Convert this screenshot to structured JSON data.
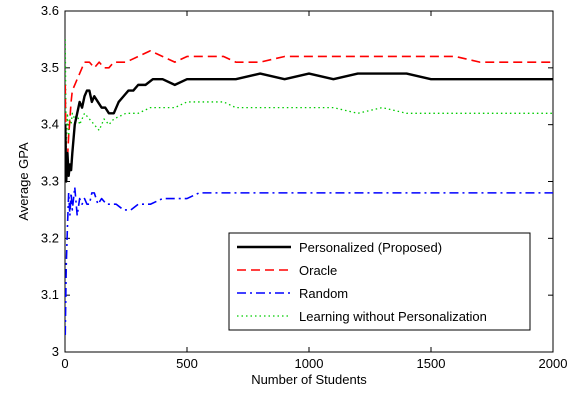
{
  "chart_data": {
    "type": "line",
    "title": "",
    "xlabel": "Number of Students",
    "ylabel": "Average GPA",
    "xlim": [
      0,
      2000
    ],
    "ylim": [
      3.0,
      3.6
    ],
    "xticks": [
      0,
      500,
      1000,
      1500,
      2000
    ],
    "yticks": [
      3.0,
      3.1,
      3.2,
      3.3,
      3.4,
      3.5,
      3.6
    ],
    "xtick_labels": [
      "0",
      "500",
      "1000",
      "1500",
      "2000"
    ],
    "ytick_labels": [
      "3",
      "3.1",
      "3.2",
      "3.3",
      "3.4",
      "3.5",
      "3.6"
    ],
    "grid": false,
    "legend_position": "bottom-right",
    "series": [
      {
        "name": "Personalized (Proposed)",
        "color": "#000000",
        "dash": "solid",
        "x": [
          1,
          5,
          10,
          15,
          20,
          25,
          30,
          40,
          50,
          60,
          70,
          80,
          90,
          100,
          110,
          120,
          135,
          150,
          165,
          180,
          200,
          220,
          240,
          260,
          280,
          300,
          330,
          360,
          400,
          450,
          500,
          550,
          600,
          650,
          700,
          800,
          900,
          1000,
          1100,
          1200,
          1300,
          1400,
          1500,
          1600,
          1700,
          1800,
          1900,
          2000
        ],
        "y": [
          3.4,
          3.3,
          3.35,
          3.31,
          3.33,
          3.32,
          3.35,
          3.4,
          3.42,
          3.44,
          3.43,
          3.45,
          3.46,
          3.46,
          3.44,
          3.45,
          3.44,
          3.43,
          3.43,
          3.42,
          3.42,
          3.44,
          3.45,
          3.46,
          3.46,
          3.47,
          3.47,
          3.48,
          3.48,
          3.47,
          3.48,
          3.48,
          3.48,
          3.48,
          3.48,
          3.49,
          3.48,
          3.49,
          3.48,
          3.49,
          3.49,
          3.49,
          3.48,
          3.48,
          3.48,
          3.48,
          3.48,
          3.48
        ]
      },
      {
        "name": "Oracle",
        "color": "#ff0000",
        "dash": "dashed",
        "x": [
          1,
          5,
          10,
          15,
          20,
          25,
          30,
          40,
          50,
          60,
          70,
          80,
          90,
          100,
          120,
          140,
          160,
          180,
          200,
          250,
          300,
          350,
          400,
          450,
          500,
          550,
          600,
          650,
          700,
          800,
          900,
          1000,
          1100,
          1200,
          1300,
          1400,
          1500,
          1600,
          1700,
          1800,
          1900,
          2000
        ],
        "y": [
          3.47,
          3.32,
          3.34,
          3.38,
          3.41,
          3.44,
          3.46,
          3.47,
          3.48,
          3.49,
          3.5,
          3.51,
          3.51,
          3.51,
          3.5,
          3.51,
          3.5,
          3.5,
          3.51,
          3.51,
          3.52,
          3.53,
          3.52,
          3.51,
          3.52,
          3.52,
          3.52,
          3.52,
          3.51,
          3.51,
          3.52,
          3.52,
          3.52,
          3.52,
          3.52,
          3.52,
          3.52,
          3.52,
          3.51,
          3.51,
          3.51,
          3.51
        ]
      },
      {
        "name": "Random",
        "color": "#0000ff",
        "dash": "dashdot",
        "x": [
          1,
          5,
          10,
          15,
          20,
          25,
          30,
          40,
          50,
          60,
          70,
          80,
          90,
          100,
          110,
          120,
          135,
          150,
          170,
          190,
          210,
          240,
          270,
          300,
          350,
          400,
          450,
          500,
          550,
          600,
          650,
          700,
          800,
          900,
          1000,
          1100,
          1200,
          1300,
          1400,
          1500,
          1600,
          1700,
          1800,
          1900,
          2000
        ],
        "y": [
          3.03,
          3.15,
          3.22,
          3.28,
          3.24,
          3.28,
          3.25,
          3.29,
          3.24,
          3.27,
          3.26,
          3.27,
          3.26,
          3.26,
          3.28,
          3.28,
          3.26,
          3.27,
          3.26,
          3.26,
          3.26,
          3.25,
          3.25,
          3.26,
          3.26,
          3.27,
          3.27,
          3.27,
          3.28,
          3.28,
          3.28,
          3.28,
          3.28,
          3.28,
          3.28,
          3.28,
          3.28,
          3.28,
          3.28,
          3.28,
          3.28,
          3.28,
          3.28,
          3.28,
          3.28
        ]
      },
      {
        "name": "Learning without Personalization",
        "color": "#00cc00",
        "dash": "dotted",
        "x": [
          1,
          5,
          10,
          15,
          20,
          25,
          30,
          40,
          50,
          60,
          70,
          80,
          100,
          120,
          140,
          160,
          180,
          200,
          250,
          300,
          350,
          400,
          450,
          500,
          550,
          600,
          650,
          700,
          800,
          900,
          1000,
          1100,
          1200,
          1300,
          1400,
          1500,
          1600,
          1700,
          1800,
          1900,
          2000
        ],
        "y": [
          3.55,
          3.36,
          3.42,
          3.38,
          3.41,
          3.4,
          3.42,
          3.41,
          3.42,
          3.4,
          3.41,
          3.42,
          3.41,
          3.4,
          3.39,
          3.41,
          3.4,
          3.41,
          3.42,
          3.42,
          3.43,
          3.43,
          3.43,
          3.44,
          3.44,
          3.44,
          3.44,
          3.43,
          3.43,
          3.43,
          3.43,
          3.43,
          3.42,
          3.43,
          3.42,
          3.42,
          3.42,
          3.42,
          3.42,
          3.42,
          3.42
        ]
      }
    ]
  }
}
